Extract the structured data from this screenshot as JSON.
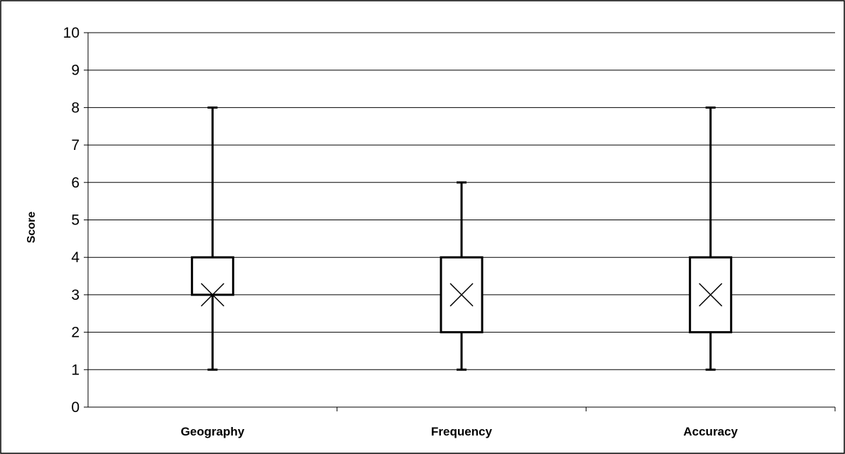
{
  "chart_data": {
    "type": "box",
    "ylabel": "Score",
    "xlabel": "",
    "ylim": [
      0,
      10
    ],
    "yticks": [
      0,
      1,
      2,
      3,
      4,
      5,
      6,
      7,
      8,
      9,
      10
    ],
    "grid": true,
    "legend": "none",
    "categories": [
      "Geography",
      "Frequency",
      "Accuracy"
    ],
    "boxes": [
      {
        "category": "Geography",
        "min": 1,
        "q1": 3,
        "q3": 4,
        "max": 8,
        "mean": 3
      },
      {
        "category": "Frequency",
        "min": 1,
        "q1": 2,
        "q3": 4,
        "max": 6,
        "mean": 3
      },
      {
        "category": "Accuracy",
        "min": 1,
        "q1": 2,
        "q3": 4,
        "max": 8,
        "mean": 3
      }
    ],
    "colors": {
      "line": "#000000",
      "grid": "#000000",
      "background": "#ffffff"
    }
  }
}
